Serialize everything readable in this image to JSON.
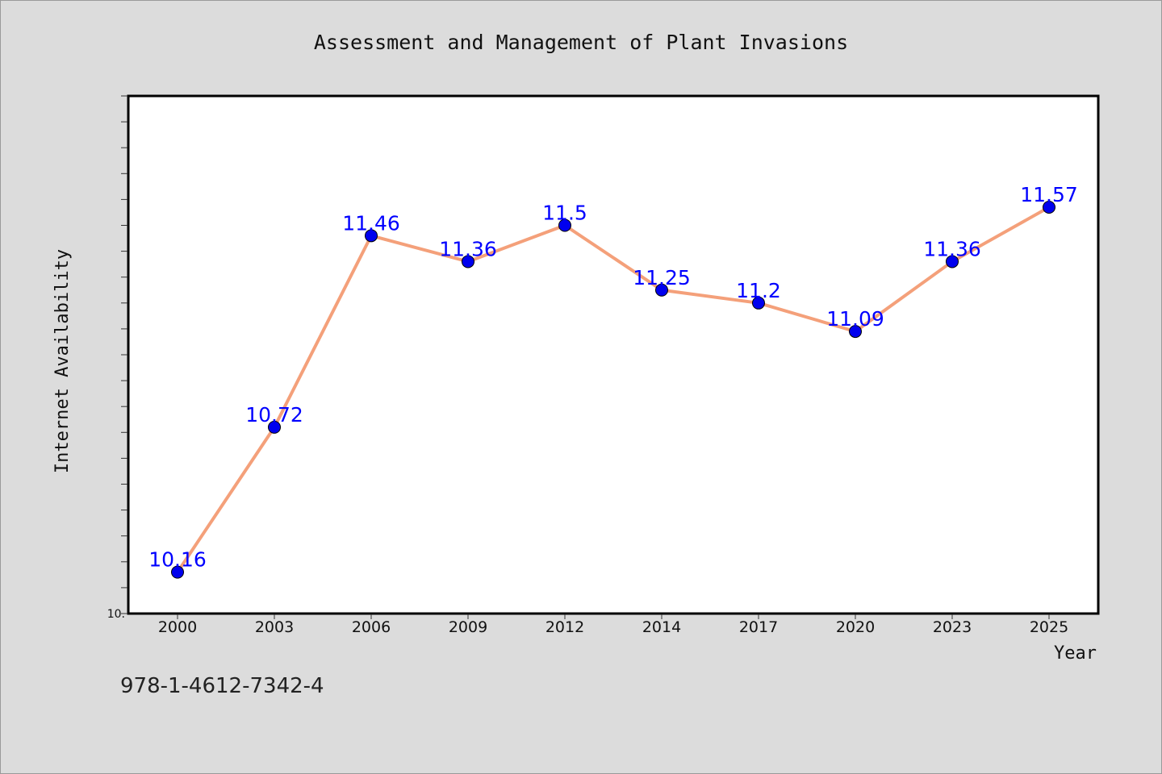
{
  "isbn": "978-1-4612-7342-4",
  "colors": {
    "background": "#dcdcdc",
    "plot_background": "#ffffff",
    "line": "#f4a07a",
    "marker": "#0000ee",
    "data_label": "#0000ff"
  },
  "chart_data": {
    "type": "line",
    "title": "Assessment and Management of Plant Invasions",
    "xlabel": "Year",
    "ylabel": "Internet Availability",
    "categories": [
      "2000",
      "2003",
      "2006",
      "2009",
      "2012",
      "2014",
      "2017",
      "2020",
      "2023",
      "2025"
    ],
    "series": [
      {
        "values": [
          10.16,
          10.72,
          11.46,
          11.36,
          11.5,
          11.25,
          11.2,
          11.09,
          11.36,
          11.57
        ],
        "data_labels": [
          "10.16",
          "10.72",
          "11.46",
          "11.36",
          "11.5",
          "11.25",
          "11.2",
          "11.09",
          "11.36",
          "11.57"
        ]
      }
    ],
    "ylim": [
      10.0,
      12.0
    ],
    "y_tick_labels": [
      {
        "value": 10.0,
        "label": "10."
      }
    ],
    "y_minor_tick_step": 0.1,
    "grid": false,
    "legend": "none"
  }
}
